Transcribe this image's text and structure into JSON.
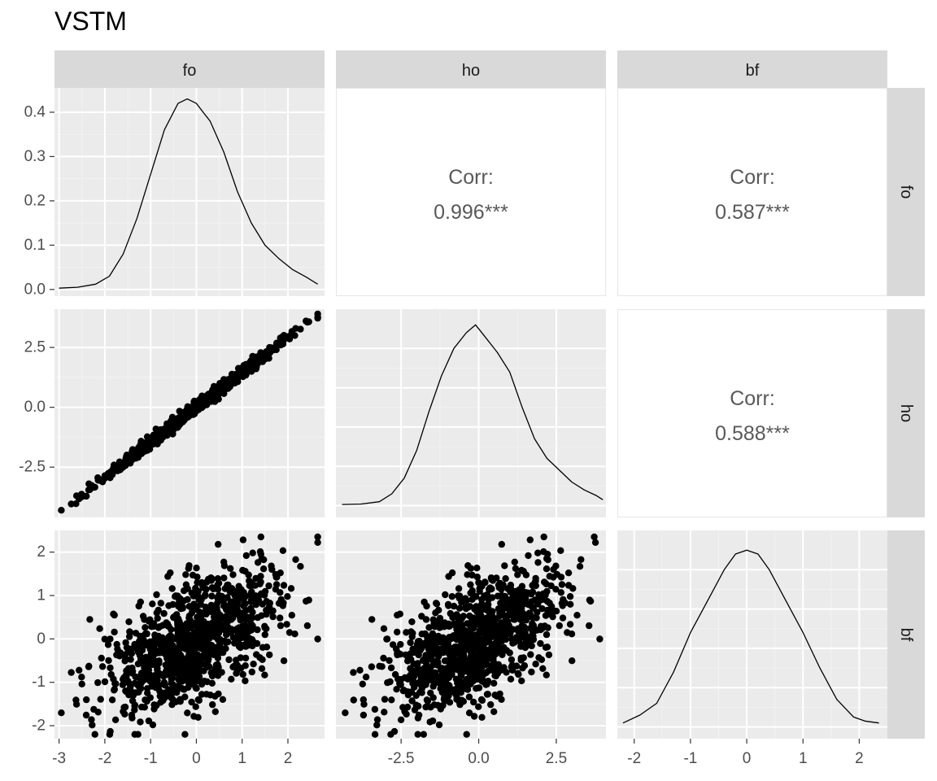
{
  "title": "VSTM",
  "chart_data": {
    "type": "scatter-matrix",
    "title": "VSTM",
    "variables": [
      "fo",
      "ho",
      "bf"
    ],
    "correlations": [
      {
        "row": "fo",
        "col": "ho",
        "label": "Corr:",
        "value": "0.996***"
      },
      {
        "row": "fo",
        "col": "bf",
        "label": "Corr:",
        "value": "0.587***"
      },
      {
        "row": "ho",
        "col": "bf",
        "label": "Corr:",
        "value": "0.588***"
      }
    ],
    "axes": {
      "fo": {
        "range": [
          -3.1,
          2.8
        ],
        "ticks": [
          -3,
          -2,
          -1,
          0,
          1,
          2
        ],
        "tick_labels": [
          "-3",
          "-2",
          "-1",
          "0",
          "1",
          "2"
        ]
      },
      "ho": {
        "range": [
          -4.6,
          4.1
        ],
        "ticks": [
          -2.5,
          0,
          2.5
        ],
        "tick_labels": [
          "-2.5",
          "0.0",
          "2.5"
        ]
      },
      "bf": {
        "range": [
          -2.3,
          2.5
        ],
        "ticks": [
          -2,
          -1,
          0,
          1,
          2
        ],
        "tick_labels": [
          "-2",
          "-1",
          "0",
          "1",
          "2"
        ]
      },
      "fo_density": {
        "range": [
          -0.015,
          0.455
        ],
        "ticks": [
          0,
          0.1,
          0.2,
          0.3,
          0.4
        ],
        "tick_labels": [
          "0.0",
          "0.1",
          "0.2",
          "0.3",
          "0.4"
        ]
      }
    },
    "densities": {
      "fo": {
        "x": [
          -3.0,
          -2.6,
          -2.2,
          -1.9,
          -1.6,
          -1.3,
          -1.0,
          -0.7,
          -0.4,
          -0.2,
          0.0,
          0.3,
          0.6,
          0.9,
          1.2,
          1.5,
          1.8,
          2.1,
          2.4,
          2.65
        ],
        "y": [
          0.003,
          0.005,
          0.012,
          0.03,
          0.08,
          0.16,
          0.26,
          0.36,
          0.42,
          0.43,
          0.42,
          0.38,
          0.31,
          0.22,
          0.15,
          0.1,
          0.07,
          0.045,
          0.028,
          0.012
        ]
      },
      "ho": {
        "x": [
          -4.4,
          -3.8,
          -3.2,
          -2.8,
          -2.4,
          -2.0,
          -1.6,
          -1.2,
          -0.8,
          -0.4,
          -0.1,
          0.2,
          0.6,
          1.0,
          1.4,
          1.8,
          2.2,
          2.6,
          3.0,
          3.4,
          3.8,
          4.0
        ],
        "y": [
          0.003,
          0.004,
          0.01,
          0.03,
          0.07,
          0.14,
          0.24,
          0.33,
          0.4,
          0.44,
          0.46,
          0.43,
          0.39,
          0.34,
          0.25,
          0.17,
          0.12,
          0.09,
          0.06,
          0.04,
          0.025,
          0.015
        ]
      },
      "bf": {
        "x": [
          -2.2,
          -1.9,
          -1.6,
          -1.3,
          -1.0,
          -0.7,
          -0.4,
          -0.2,
          0.0,
          0.2,
          0.4,
          0.7,
          1.0,
          1.3,
          1.6,
          1.9,
          2.1,
          2.35
        ],
        "y": [
          0.01,
          0.03,
          0.06,
          0.14,
          0.24,
          0.32,
          0.4,
          0.44,
          0.45,
          0.44,
          0.4,
          0.32,
          0.24,
          0.15,
          0.07,
          0.025,
          0.015,
          0.01
        ]
      }
    }
  }
}
